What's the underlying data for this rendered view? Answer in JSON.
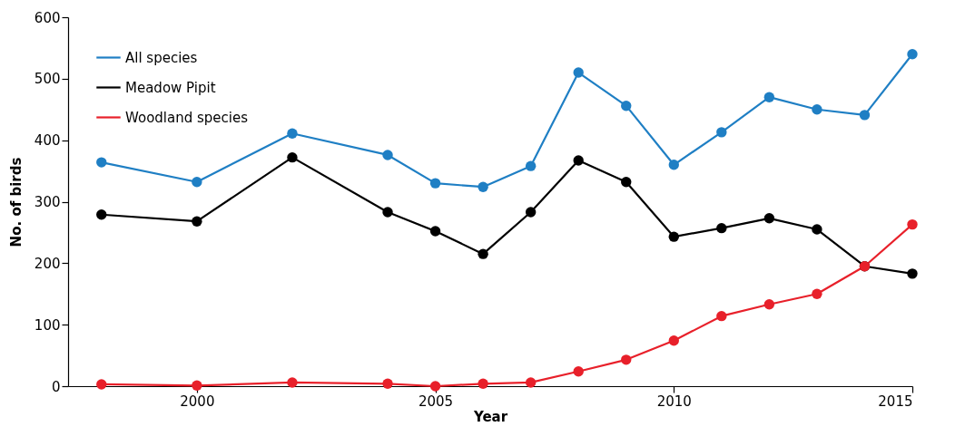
{
  "chart_data": {
    "type": "line",
    "xlabel": "Year",
    "ylabel": "No. of birds",
    "x": [
      1998,
      2000,
      2002,
      2004,
      2005,
      2006,
      2007,
      2008,
      2009,
      2010,
      2011,
      2012,
      2013,
      2014,
      2015
    ],
    "series": [
      {
        "name": "All species",
        "color": "#1f7fc4",
        "values": [
          364,
          332,
          411,
          376,
          330,
          324,
          358,
          510,
          456,
          360,
          413,
          470,
          450,
          441,
          540
        ]
      },
      {
        "name": "Meadow Pipit",
        "color": "#000000",
        "values": [
          279,
          268,
          372,
          283,
          252,
          215,
          283,
          367,
          332,
          243,
          257,
          273,
          255,
          195,
          183
        ]
      },
      {
        "name": "Woodland species",
        "color": "#e8202a",
        "values": [
          3,
          1,
          6,
          4,
          0,
          4,
          6,
          24,
          43,
          74,
          114,
          133,
          150,
          195,
          263
        ]
      }
    ],
    "xlim": [
      1997.3,
      2015
    ],
    "xticks": [
      2000,
      2005,
      2010,
      2015
    ],
    "ylim": [
      0,
      600
    ],
    "yticks": [
      0,
      100,
      200,
      300,
      400,
      500,
      600
    ],
    "grid": false,
    "legend": "top left",
    "marker": "circle",
    "line_style": "solid"
  }
}
